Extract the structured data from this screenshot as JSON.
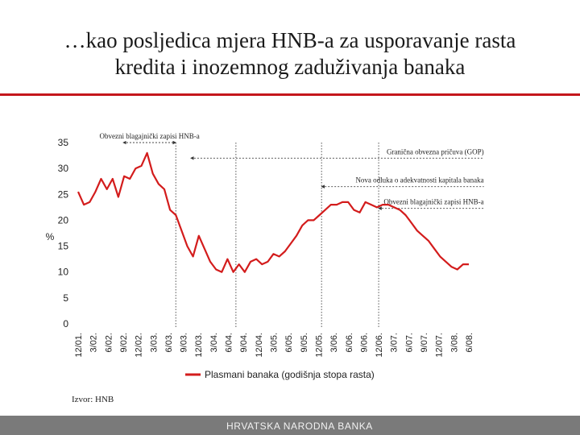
{
  "slide": {
    "title_line1": "…kao posljedica mjera HNB-a za usporavanje rasta",
    "title_line2": "kredita i inozemnog zaduživanja banaka",
    "source": "Izvor: HNB",
    "footer": "HRVATSKA NARODNA BANKA"
  },
  "colors": {
    "accent": "#c4161c",
    "series": "#d31c1c",
    "footer": "#7a7a7a"
  },
  "chart_data": {
    "type": "line",
    "title": "",
    "ylabel": "%",
    "ylim": [
      0,
      35
    ],
    "yticks": [
      0,
      5,
      10,
      15,
      20,
      25,
      30,
      35
    ],
    "xtick_labels": [
      "12/01.",
      "3/02.",
      "6/02.",
      "9/02.",
      "12/02.",
      "3/03.",
      "6/03.",
      "9/03.",
      "12/03.",
      "3/04.",
      "6/04.",
      "9/04.",
      "12/04.",
      "3/05.",
      "6/05.",
      "9/05.",
      "12/05.",
      "3/06.",
      "6/06.",
      "9/06.",
      "12/06.",
      "3/07.",
      "6/07.",
      "9/07.",
      "12/07.",
      "3/08.",
      "6/08."
    ],
    "series": [
      {
        "name": "Plasmani banaka (godišnja stopa rasta)",
        "values": [
          25.5,
          23.0,
          23.5,
          25.5,
          28.0,
          26.0,
          28.0,
          24.5,
          28.5,
          28.0,
          30.0,
          30.5,
          33.0,
          29.0,
          27.0,
          26.0,
          22.0,
          21.0,
          18.0,
          15.0,
          13.0,
          17.0,
          14.5,
          12.0,
          10.5,
          10.0,
          12.5,
          10.0,
          11.5,
          10.0,
          12.0,
          12.5,
          11.5,
          12.0,
          13.5,
          13.0,
          14.0,
          15.5,
          17.0,
          19.0,
          20.0,
          20.0,
          21.0,
          22.0,
          23.0,
          23.0,
          23.5,
          23.5,
          22.0,
          21.5,
          23.5,
          23.0,
          22.5,
          23.0,
          23.0,
          22.5,
          22.0,
          21.0,
          19.5,
          18.0,
          17.0,
          16.0,
          14.5,
          13.0,
          12.0,
          11.0,
          10.5,
          11.5,
          11.5
        ]
      }
    ],
    "annotations": [
      {
        "label": "Obvezni blagajnički zapisi HNB-a",
        "x_start": 3.0,
        "x_end": 6.5,
        "y": 35.0,
        "arrow": "both"
      },
      {
        "label": "Granična obvezna pričuva (GOP)",
        "x_start": 7.5,
        "x_end": 27.0,
        "y": 32.0,
        "arrow": "left"
      },
      {
        "label": "Nova odluka o adekvatnosti kapitala banaka",
        "x_start": 16.2,
        "x_end": 27.0,
        "y": 26.5,
        "arrow": "left"
      },
      {
        "label": "Obvezni blagajnički zapisi HNB-a",
        "x_start": 20.0,
        "x_end": 27.0,
        "y": 22.3,
        "arrow": "left"
      }
    ],
    "vlines_at": [
      6.5,
      10.5,
      16.2,
      20.0
    ],
    "grid": false,
    "legend": "bottom-center"
  }
}
